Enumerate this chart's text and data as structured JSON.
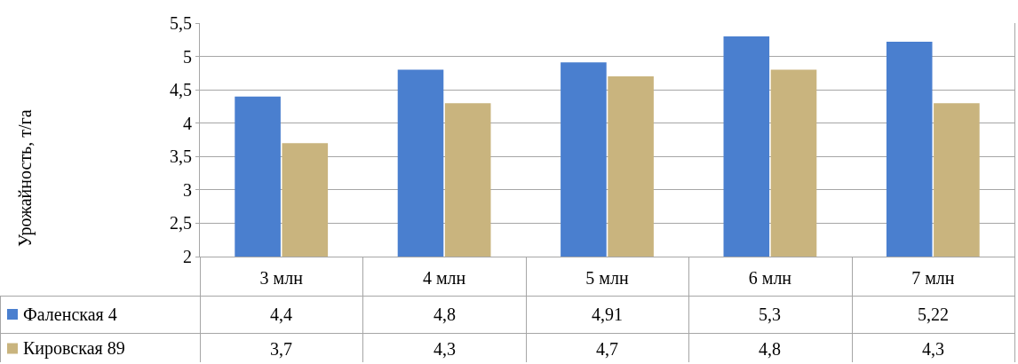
{
  "chart_data": {
    "type": "bar",
    "annotations": [
      "Урожайность, т/га"
    ],
    "categories": [
      "3 млн",
      "4 млн",
      "5 млн",
      "6 млн",
      "7 млн"
    ],
    "series": [
      {
        "name": "Фаленская 4",
        "color": "#4a7fcf",
        "values": [
          4.4,
          4.8,
          4.91,
          5.3,
          5.22
        ],
        "value_labels": [
          "4,4",
          "4,8",
          "4,91",
          "5,3",
          "5,22"
        ]
      },
      {
        "name": "Кировская 89",
        "color": "#c9b47e",
        "values": [
          3.7,
          4.3,
          4.7,
          4.8,
          4.3
        ],
        "value_labels": [
          "3,7",
          "4,3",
          "4,7",
          "4,8",
          "4,3"
        ]
      }
    ],
    "ylim": [
      2,
      5.5
    ],
    "yticks": [
      2,
      {
        "value": 2.5,
        "label": "2,5"
      },
      3,
      {
        "value": 3.5,
        "label": "3,5"
      },
      4,
      {
        "value": 4.5,
        "label": "4,5"
      },
      5,
      {
        "value": 5.5,
        "label": "5,5"
      }
    ],
    "grid": "y",
    "legend": "bottom"
  }
}
